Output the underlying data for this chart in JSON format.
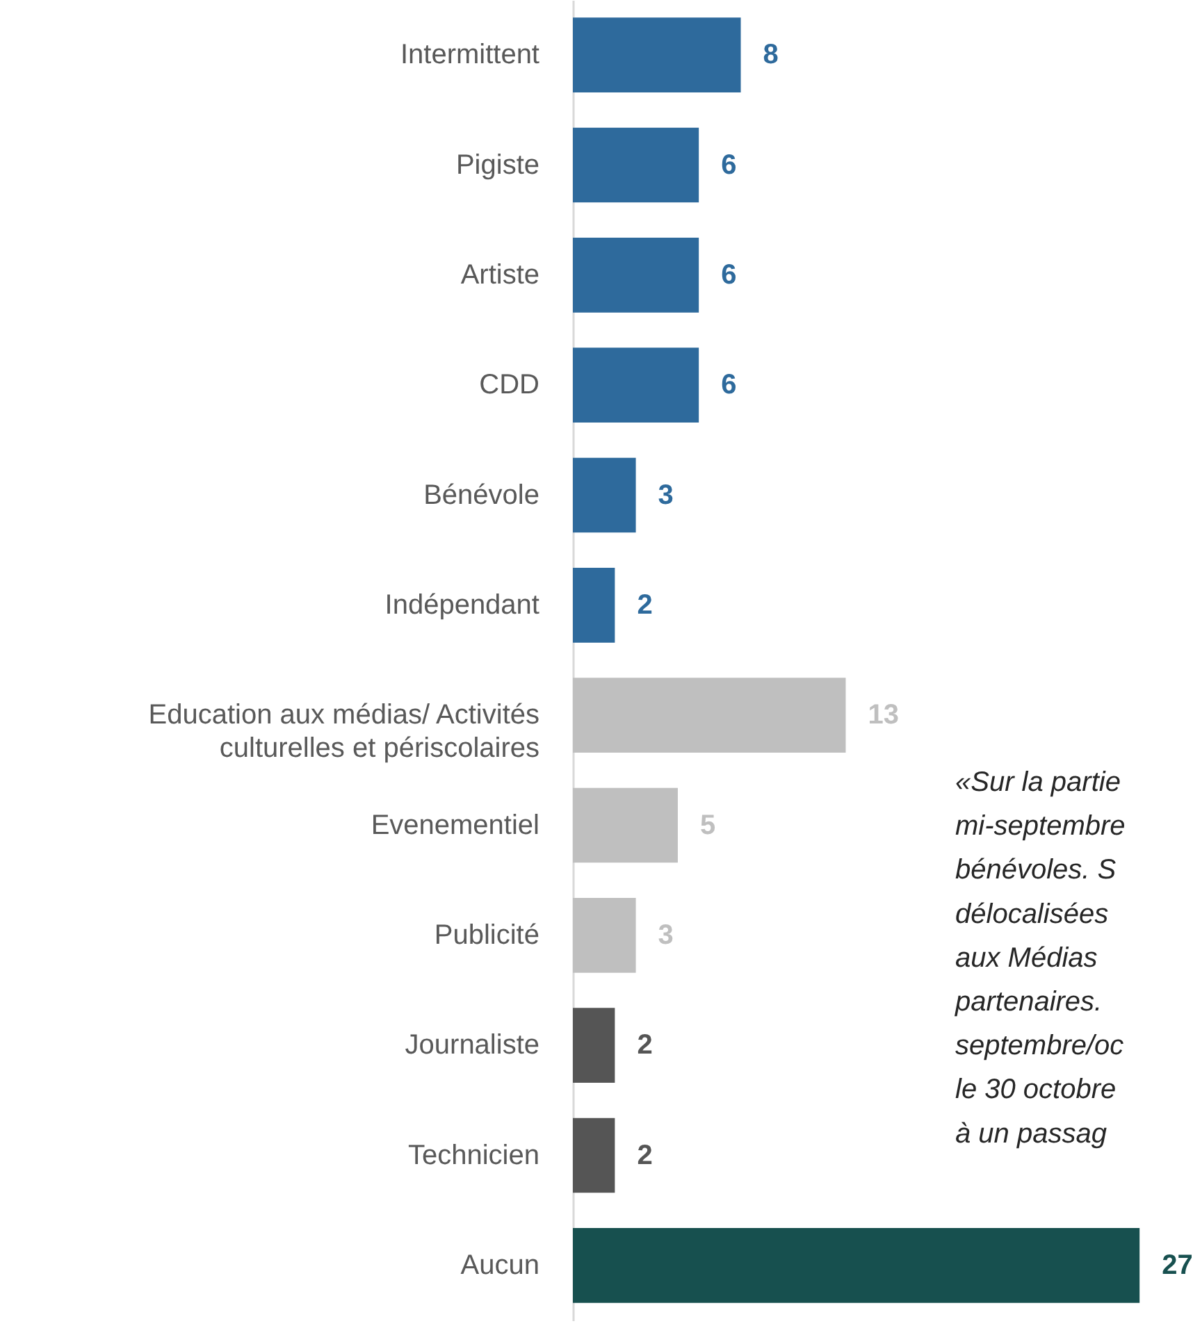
{
  "chart_data": {
    "type": "bar",
    "orientation": "horizontal",
    "data_labels": true,
    "categories": [
      "Intermittent",
      "Pigiste",
      "Artiste",
      "CDD",
      "Bénévole",
      "Indépendant",
      "Education aux médias/ Activités culturelles et périscolaires",
      "Evenementiel",
      "Publicité",
      "Journaliste",
      "Technicien",
      "Aucun"
    ],
    "values": [
      8,
      6,
      6,
      6,
      3,
      2,
      13,
      5,
      3,
      2,
      2,
      27
    ],
    "colors": [
      "#2e6a9c",
      "#2e6a9c",
      "#2e6a9c",
      "#2e6a9c",
      "#2e6a9c",
      "#2e6a9c",
      "#bfbfbf",
      "#bfbfbf",
      "#bfbfbf",
      "#555555",
      "#555555",
      "#17504f"
    ],
    "annotations": [
      "«Sur la partie\nmi-septembre\nbénévoles. S\ndélocalisées\naux Médias\npartenaires.\nseptembre/oc\nle 30 octobre\nà un passag"
    ]
  }
}
